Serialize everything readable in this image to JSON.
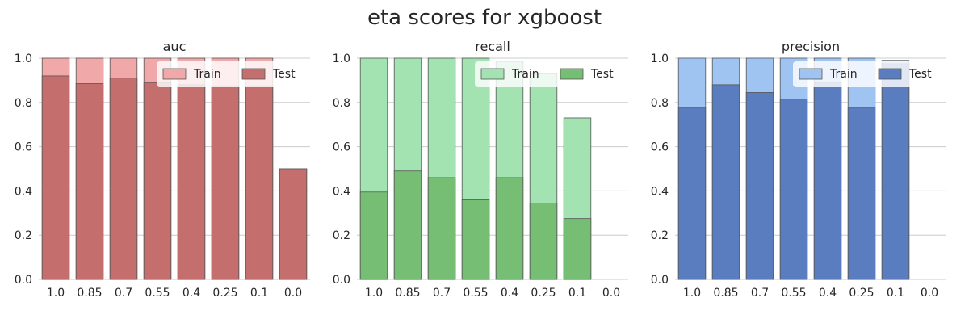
{
  "figure": {
    "title": "eta scores for xgboost"
  },
  "chart_data": [
    {
      "type": "bar",
      "title": "auc",
      "categories": [
        "1.0",
        "0.85",
        "0.7",
        "0.55",
        "0.4",
        "0.25",
        "0.1",
        "0.0"
      ],
      "ylim": [
        0,
        1.0
      ],
      "yticks": [
        "0.0",
        "0.2",
        "0.4",
        "0.6",
        "0.8",
        "1.0"
      ],
      "grid": true,
      "legend": "top-right",
      "colors": {
        "train": "#f0a8a8",
        "test": "#c46e6e"
      },
      "series": [
        {
          "name": "Train",
          "values": [
            1.0,
            1.0,
            1.0,
            1.0,
            1.0,
            1.0,
            1.0,
            0.5
          ]
        },
        {
          "name": "Test",
          "values": [
            0.92,
            0.885,
            0.91,
            0.89,
            0.88,
            0.875,
            0.875,
            0.5
          ]
        }
      ]
    },
    {
      "type": "bar",
      "title": "recall",
      "categories": [
        "1.0",
        "0.85",
        "0.7",
        "0.55",
        "0.4",
        "0.25",
        "0.1",
        "0.0"
      ],
      "ylim": [
        0,
        1.0
      ],
      "yticks": [
        "0.0",
        "0.2",
        "0.4",
        "0.6",
        "0.8",
        "1.0"
      ],
      "grid": true,
      "legend": "top-right",
      "colors": {
        "train": "#a2e3b1",
        "test": "#77be75"
      },
      "series": [
        {
          "name": "Train",
          "values": [
            1.0,
            1.0,
            1.0,
            1.0,
            0.985,
            0.93,
            0.73,
            0.0
          ]
        },
        {
          "name": "Test",
          "values": [
            0.395,
            0.49,
            0.46,
            0.36,
            0.46,
            0.345,
            0.275,
            0.0
          ]
        }
      ]
    },
    {
      "type": "bar",
      "title": "precision",
      "categories": [
        "1.0",
        "0.85",
        "0.7",
        "0.55",
        "0.4",
        "0.25",
        "0.1",
        "0.0"
      ],
      "ylim": [
        0,
        1.0
      ],
      "yticks": [
        "0.0",
        "0.2",
        "0.4",
        "0.6",
        "0.8",
        "1.0"
      ],
      "grid": true,
      "legend": "top-right",
      "colors": {
        "train": "#a0c4f2",
        "test": "#5a7dc0"
      },
      "series": [
        {
          "name": "Train",
          "values": [
            1.0,
            1.0,
            1.0,
            1.0,
            1.0,
            1.0,
            0.99,
            0.0
          ]
        },
        {
          "name": "Test",
          "values": [
            0.775,
            0.88,
            0.845,
            0.815,
            0.89,
            0.775,
            0.975,
            0.0
          ]
        }
      ]
    }
  ]
}
